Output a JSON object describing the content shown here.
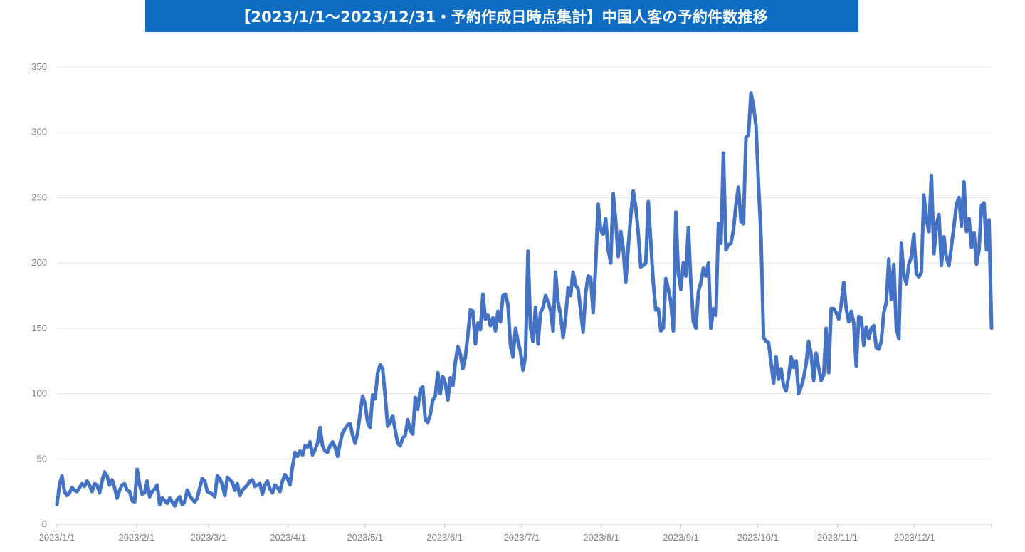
{
  "title": "【2023/1/1〜2023/12/31・予約作成日時点集計】中国人客の予約件数推移",
  "colors": {
    "title_bg": "#0E6CC2",
    "line": "#4472C4",
    "grid": "#e3e3e3",
    "tick_text": "#7f7f7f"
  },
  "chart_data": {
    "type": "line",
    "title": "【2023/1/1〜2023/12/31・予約作成日時点集計】中国人客の予約件数推移",
    "xlabel": "",
    "ylabel": "",
    "ylim": [
      0,
      350
    ],
    "yticks": [
      0,
      50,
      100,
      150,
      200,
      250,
      300,
      350
    ],
    "xticks": [
      {
        "label": "2023/1/1",
        "day": 0
      },
      {
        "label": "2023/2/1",
        "day": 31
      },
      {
        "label": "2023/3/1",
        "day": 59
      },
      {
        "label": "2023/4/1",
        "day": 90
      },
      {
        "label": "2023/5/1",
        "day": 120
      },
      {
        "label": "2023/6/1",
        "day": 151
      },
      {
        "label": "2023/7/1",
        "day": 181
      },
      {
        "label": "2023/8/1",
        "day": 212
      },
      {
        "label": "2023/9/1",
        "day": 243
      },
      {
        "label": "2023/10/1",
        "day": 273
      },
      {
        "label": "2023/11/1",
        "day": 304
      },
      {
        "label": "2023/12/1",
        "day": 334
      }
    ],
    "x_range_days": [
      0,
      364
    ],
    "grid": true,
    "legend": "none",
    "series": [
      {
        "values": [
          15,
          30,
          37,
          25,
          22,
          24,
          28,
          26,
          25,
          28,
          31,
          29,
          33,
          30,
          25,
          31,
          30,
          24,
          33,
          40,
          37,
          30,
          34,
          28,
          20,
          26,
          30,
          31,
          26,
          25,
          18,
          17,
          42,
          30,
          23,
          24,
          33,
          21,
          25,
          27,
          30,
          15,
          20,
          18,
          16,
          20,
          17,
          14,
          19,
          21,
          15,
          17,
          26,
          22,
          19,
          17,
          20,
          28,
          35,
          33,
          25,
          24,
          23,
          21,
          37,
          35,
          30,
          22,
          36,
          34,
          32,
          26,
          31,
          22,
          26,
          28,
          30,
          33,
          34,
          29,
          30,
          31,
          23,
          30,
          33,
          27,
          24,
          30,
          28,
          25,
          33,
          38,
          35,
          30,
          44,
          55,
          52,
          56,
          53,
          60,
          59,
          63,
          53,
          57,
          62,
          74,
          60,
          56,
          55,
          60,
          63,
          59,
          52,
          62,
          70,
          73,
          76,
          77,
          68,
          62,
          70,
          85,
          98,
          92,
          78,
          74,
          99,
          96,
          116,
          122,
          119,
          98,
          75,
          78,
          83,
          72,
          62,
          60,
          66,
          68,
          80,
          72,
          69,
          97,
          88,
          103,
          105,
          80,
          78,
          84,
          95,
          98,
          116,
          100,
          113,
          108,
          95,
          112,
          106,
          124,
          136,
          130,
          119,
          128,
          145,
          164,
          163,
          138,
          154,
          149,
          176,
          157,
          160,
          152,
          158,
          148,
          163,
          155,
          175,
          176,
          168,
          137,
          128,
          150,
          140,
          132,
          118,
          129,
          209,
          150,
          140,
          166,
          138,
          162,
          166,
          175,
          170,
          164,
          148,
          193,
          170,
          160,
          143,
          158,
          181,
          175,
          193,
          183,
          180,
          164,
          147,
          177,
          190,
          189,
          162,
          198,
          245,
          225,
          222,
          234,
          210,
          200,
          253,
          232,
          205,
          224,
          211,
          185,
          212,
          236,
          255,
          243,
          223,
          197,
          198,
          200,
          247,
          216,
          185,
          164,
          165,
          148,
          150,
          188,
          180,
          170,
          148,
          239,
          192,
          180,
          200,
          190,
          227,
          185,
          155,
          150,
          178,
          185,
          196,
          190,
          200,
          150,
          165,
          160,
          230,
          215,
          284,
          210,
          214,
          215,
          225,
          245,
          258,
          232,
          230,
          296,
          298,
          330,
          320,
          305,
          260,
          220,
          143,
          140,
          139,
          124,
          108,
          128,
          111,
          119,
          106,
          102,
          113,
          128,
          120,
          125,
          100,
          105,
          112,
          123,
          140,
          130,
          110,
          131,
          120,
          110,
          114,
          150,
          116,
          165,
          165,
          162,
          157,
          168,
          185,
          165,
          155,
          163,
          154,
          121,
          159,
          158,
          137,
          151,
          142,
          150,
          152,
          135,
          134,
          140,
          162,
          170,
          203,
          172,
          199,
          150,
          142,
          215,
          191,
          184,
          199,
          205,
          222,
          192,
          189,
          193,
          252,
          233,
          224,
          267,
          207,
          229,
          237,
          198,
          220,
          204,
          198,
          213,
          228,
          245,
          250,
          228,
          262,
          224,
          234,
          212,
          223,
          199,
          210,
          244,
          246,
          210,
          233,
          150
        ]
      }
    ]
  }
}
